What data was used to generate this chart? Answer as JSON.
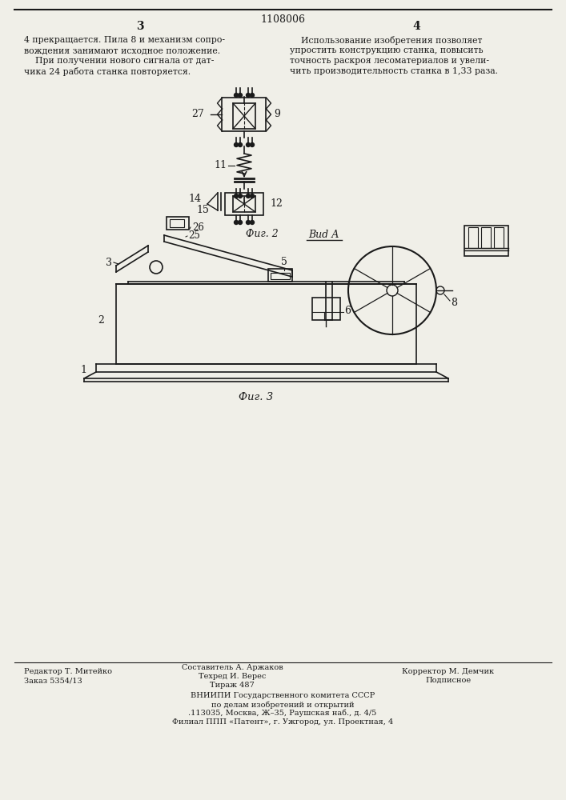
{
  "page_color": "#f0efe8",
  "text_color": "#1a1a1a",
  "patent_number": "1108006",
  "col_left_num": "3",
  "col_right_num": "4",
  "text_left_lines": [
    "4 прекращается. Пила 8 и механизм сопро-",
    "вождения занимают исходное положение.",
    "    При получении нового сигнала от дат-",
    "чика 24 работа станка повторяется."
  ],
  "text_right_lines": [
    "    Использование изобретения позволяет",
    "упростить конструкцию станка, повысить",
    "точность раскроя лесоматериалов и увели-",
    "чить производительность станка в 1,33 раза."
  ],
  "fig2_label": "Фuг. 2",
  "fig3_label": "Фuг. 3",
  "vid_a_label": "Вud А",
  "footer_left1": "Редактор Т. Митейко",
  "footer_left2": "Заказ 5354/13",
  "footer_center1": "Составитель А. Аржаков",
  "footer_center2": "Техред И. Верес",
  "footer_center3": "Тираж 487",
  "footer_right1": "Корректор М. Демчик",
  "footer_right2": "Подписное",
  "footer_vniiipi1": "ВНИИПИ Государственного комитета СССР",
  "footer_vniiipi2": "по делам изобретений и открытий",
  "footer_vniiipi3": ".113035, Москва, Ж–35, Раушская наб., д. 4/5",
  "footer_vniiipi4": "Филиал ППП «Патент», г. Ужгород, ул. Проектная, 4"
}
